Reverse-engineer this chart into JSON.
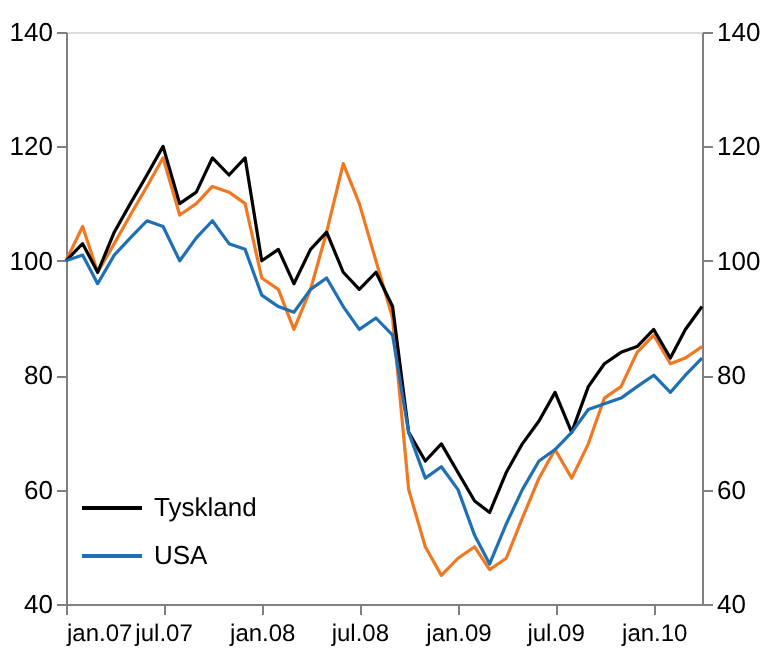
{
  "chart_data": {
    "type": "line",
    "x": [
      "2007-01",
      "2007-02",
      "2007-03",
      "2007-04",
      "2007-05",
      "2007-06",
      "2007-07",
      "2007-08",
      "2007-09",
      "2007-10",
      "2007-11",
      "2007-12",
      "2008-01",
      "2008-02",
      "2008-03",
      "2008-04",
      "2008-05",
      "2008-06",
      "2008-07",
      "2008-08",
      "2008-09",
      "2008-10",
      "2008-11",
      "2008-12",
      "2009-01",
      "2009-02",
      "2009-03",
      "2009-04",
      "2009-05",
      "2009-06",
      "2009-07",
      "2009-08",
      "2009-09",
      "2009-10",
      "2009-11",
      "2009-12",
      "2010-01",
      "2010-02",
      "2010-03",
      "2010-04"
    ],
    "series": [
      {
        "color": "#f07820",
        "values": [
          100,
          106,
          98,
          103,
          108,
          113,
          118,
          108,
          110,
          113,
          112,
          110,
          97,
          95,
          88,
          95,
          105,
          117,
          110,
          100,
          90,
          60,
          50,
          45,
          48,
          50,
          46,
          48,
          55,
          62,
          67,
          62,
          68,
          76,
          78,
          84,
          87,
          82,
          83,
          85
        ]
      },
      {
        "name": "Tyskland",
        "color": "#000000",
        "values": [
          100,
          103,
          98,
          105,
          110,
          115,
          120,
          110,
          112,
          118,
          115,
          118,
          100,
          102,
          96,
          102,
          105,
          98,
          95,
          98,
          92,
          70,
          65,
          68,
          63,
          58,
          56,
          63,
          68,
          72,
          77,
          70,
          78,
          82,
          84,
          85,
          88,
          83,
          88,
          92
        ]
      },
      {
        "name": "USA",
        "color": "#1f6fb4",
        "values": [
          100,
          101,
          96,
          101,
          104,
          107,
          106,
          100,
          104,
          107,
          103,
          102,
          94,
          92,
          91,
          95,
          97,
          92,
          88,
          90,
          87,
          70,
          62,
          64,
          60,
          52,
          47,
          54,
          60,
          65,
          67,
          70,
          74,
          75,
          76,
          78,
          80,
          77,
          80,
          83
        ]
      }
    ],
    "xlim": [
      "2007-01-01",
      "2010-04-01"
    ],
    "xticks": [
      {
        "value": "2007-01-01",
        "label": "jan.07"
      },
      {
        "value": "2007-07-01",
        "label": "jul.07"
      },
      {
        "value": "2008-01-01",
        "label": "jan.08"
      },
      {
        "value": "2008-07-01",
        "label": "jul.08"
      },
      {
        "value": "2009-01-01",
        "label": "jan.09"
      },
      {
        "value": "2009-07-01",
        "label": "jul.09"
      },
      {
        "value": "2010-01-01",
        "label": "jan.10"
      }
    ],
    "ylim": [
      40,
      140
    ],
    "yticks": [
      40,
      60,
      80,
      100,
      120,
      140
    ],
    "y2lim": [
      40,
      140
    ],
    "y2ticks": [
      40,
      60,
      80,
      100,
      120,
      140
    ],
    "legend": "bottom left",
    "grid": false,
    "marker": "none",
    "line_style": "solid"
  }
}
